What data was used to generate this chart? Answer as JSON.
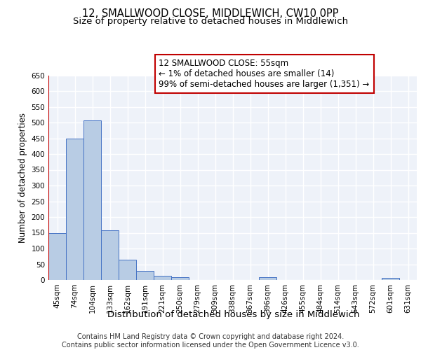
{
  "title1": "12, SMALLWOOD CLOSE, MIDDLEWICH, CW10 0PP",
  "title2": "Size of property relative to detached houses in Middlewich",
  "xlabel": "Distribution of detached houses by size in Middlewich",
  "ylabel": "Number of detached properties",
  "categories": [
    "45sqm",
    "74sqm",
    "104sqm",
    "133sqm",
    "162sqm",
    "191sqm",
    "221sqm",
    "250sqm",
    "279sqm",
    "309sqm",
    "338sqm",
    "367sqm",
    "396sqm",
    "426sqm",
    "455sqm",
    "484sqm",
    "514sqm",
    "543sqm",
    "572sqm",
    "601sqm",
    "631sqm"
  ],
  "values": [
    148,
    449,
    507,
    158,
    65,
    30,
    13,
    8,
    0,
    0,
    0,
    0,
    8,
    0,
    0,
    0,
    0,
    0,
    0,
    7,
    0
  ],
  "bar_color": "#b8cce4",
  "bar_edge_color": "#4472c4",
  "highlight_color": "#c00000",
  "annotation_text": "12 SMALLWOOD CLOSE: 55sqm\n← 1% of detached houses are smaller (14)\n99% of semi-detached houses are larger (1,351) →",
  "ylim": [
    0,
    650
  ],
  "yticks": [
    0,
    50,
    100,
    150,
    200,
    250,
    300,
    350,
    400,
    450,
    500,
    550,
    600,
    650
  ],
  "footer": "Contains HM Land Registry data © Crown copyright and database right 2024.\nContains public sector information licensed under the Open Government Licence v3.0.",
  "background_color": "#eef2f9",
  "grid_color": "#ffffff",
  "title_fontsize": 10.5,
  "subtitle_fontsize": 9.5,
  "tick_fontsize": 7.5,
  "ylabel_fontsize": 8.5,
  "xlabel_fontsize": 9.5,
  "footer_fontsize": 7.0,
  "annotation_fontsize": 8.5
}
